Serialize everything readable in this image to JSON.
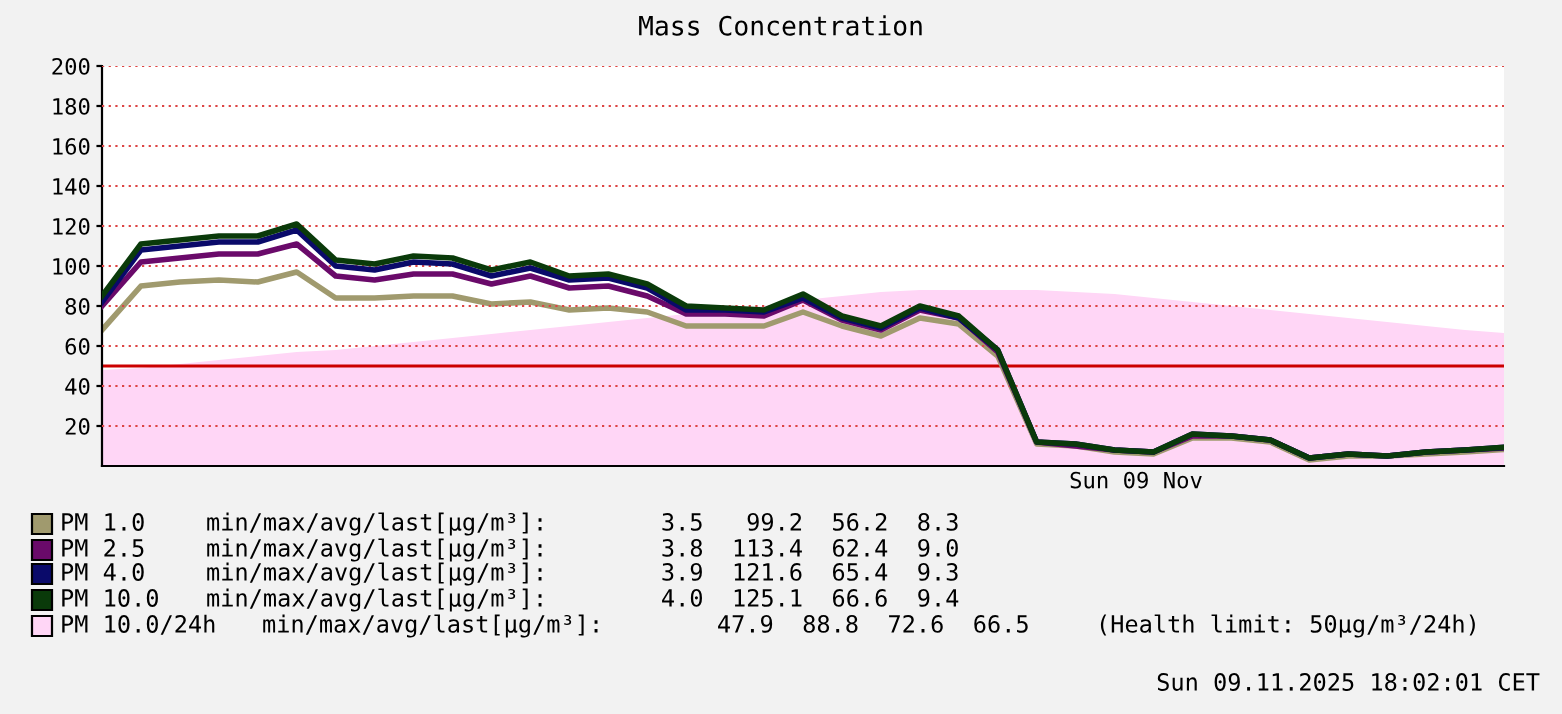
{
  "chart_data": {
    "type": "line",
    "title": "Mass Concentration",
    "categories": [
      null,
      null,
      null,
      null,
      null,
      null,
      null,
      null,
      null,
      null,
      null,
      null,
      null,
      null,
      null,
      null,
      null,
      null,
      null,
      null,
      null,
      null,
      null,
      null,
      null,
      null,
      null,
      null,
      null,
      null,
      null,
      null,
      null,
      null,
      null,
      null,
      null
    ],
    "ylim": [
      0,
      200
    ],
    "yticks": [
      20,
      40,
      60,
      80,
      100,
      120,
      140,
      160,
      180,
      200
    ],
    "grid": "y",
    "legend": "bottom",
    "ref_lines": [
      {
        "axis": "y",
        "value": 50,
        "color": "#cc0000"
      }
    ],
    "annotations": [
      "min/max/avg/last[µg/m³]:        3.5   99.2  56.2  8.3",
      "min/max/avg/last[µg/m³]:        3.8  113.4  62.4  9.0",
      "min/max/avg/last[µg/m³]:        3.9  121.6  65.4  9.3",
      "min/max/avg/last[µg/m³]:        4.0  125.1  66.6  9.4",
      "min/max/avg/last[µg/m³]:        47.9  88.8  72.6  66.5",
      "(Health limit: 50µg/m³/24h)",
      "Sun 09.11.2025 18:02:01 CET",
      "Sun 09 Nov"
    ],
    "series": [
      {
        "name": "PM 10.0/24h",
        "type": "area",
        "color": "#ffd6f6",
        "values": [
          48,
          49,
          51,
          53,
          55,
          57,
          58,
          60,
          62,
          64,
          66,
          68,
          70,
          72,
          74,
          76,
          78,
          80,
          83,
          85,
          87,
          88,
          88,
          88,
          88,
          87,
          86,
          84,
          82,
          80,
          78,
          76,
          74,
          72,
          70,
          68,
          66.5
        ]
      },
      {
        "name": "PM 1.0",
        "color": "#a09a6e",
        "values": [
          68,
          90,
          92,
          93,
          92,
          97,
          84,
          84,
          85,
          85,
          81,
          82,
          78,
          79,
          77,
          70,
          70,
          70,
          77,
          70,
          65,
          74,
          71,
          55,
          11,
          10,
          7,
          6,
          14,
          14,
          12,
          3,
          5,
          5,
          6,
          7,
          8.3
        ]
      },
      {
        "name": "PM 2.5",
        "color": "#6a0a6a",
        "values": [
          80,
          102,
          104,
          106,
          106,
          111,
          95,
          93,
          96,
          96,
          91,
          95,
          89,
          90,
          85,
          76,
          76,
          75,
          83,
          73,
          68,
          78,
          74,
          57,
          12,
          10,
          8,
          7,
          15,
          15,
          13,
          4,
          6,
          5,
          7,
          8,
          9.0
        ]
      },
      {
        "name": "PM 4.0",
        "color": "#0a0a6a",
        "values": [
          82,
          108,
          110,
          112,
          112,
          118,
          100,
          98,
          102,
          101,
          95,
          99,
          93,
          94,
          89,
          78,
          78,
          77,
          84,
          74,
          69,
          79,
          74,
          58,
          12,
          11,
          8,
          7,
          16,
          15,
          13,
          4,
          6,
          5,
          7,
          8,
          9.3
        ]
      },
      {
        "name": "PM 10.0",
        "color": "#0a3a0a",
        "values": [
          85,
          111,
          113,
          115,
          115,
          121,
          103,
          101,
          105,
          104,
          98,
          102,
          95,
          96,
          91,
          80,
          79,
          78,
          86,
          75,
          70,
          80,
          75,
          58,
          12,
          11,
          8,
          7,
          16,
          15,
          13,
          4,
          6,
          5,
          7,
          8,
          9.4
        ]
      }
    ]
  }
}
